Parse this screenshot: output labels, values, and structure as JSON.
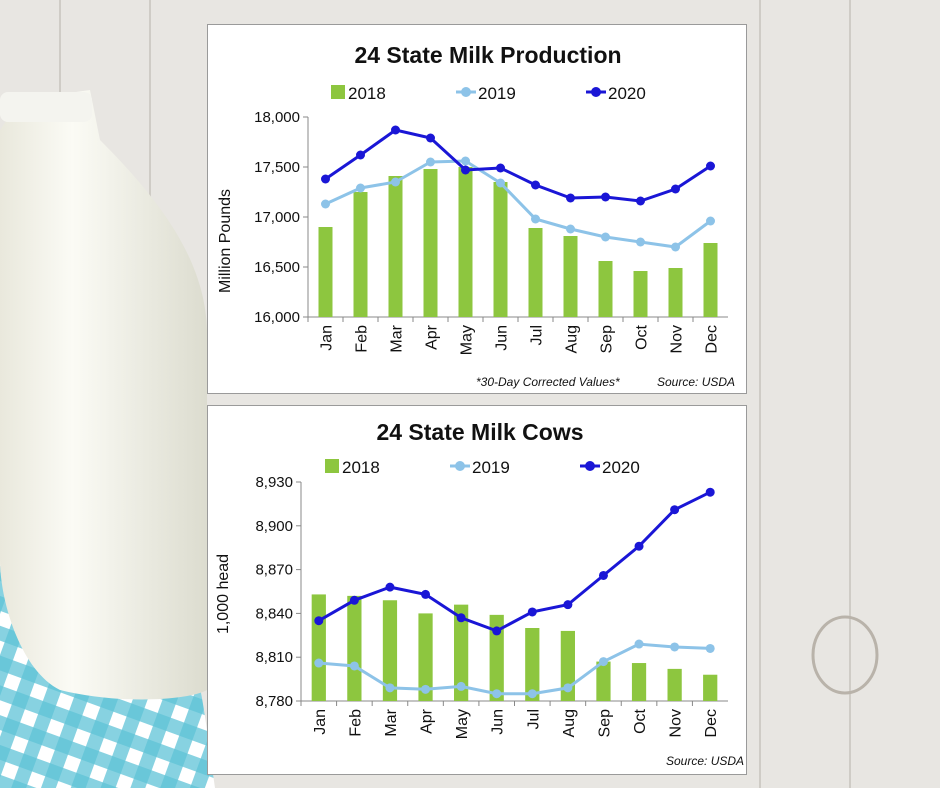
{
  "colors": {
    "c2018": "#8dc63f",
    "c2019": "#8dc3e8",
    "c2020": "#1a16d6"
  },
  "chart_data": [
    {
      "type": "bar",
      "title": "24 State Milk Production",
      "ylabel": "Million Pounds",
      "xlabel": "",
      "ylim": [
        16000,
        18000
      ],
      "yticks": [
        "16,000",
        "16,500",
        "17,000",
        "17,500",
        "18,000"
      ],
      "categories": [
        "Jan",
        "Feb",
        "Mar",
        "Apr",
        "May",
        "Jun",
        "Jul",
        "Aug",
        "Sep",
        "Oct",
        "Nov",
        "Dec"
      ],
      "series": [
        {
          "name": "2018",
          "kind": "bar",
          "values": [
            16900,
            17250,
            17410,
            17480,
            17500,
            17350,
            16890,
            16810,
            16560,
            16460,
            16490,
            16740
          ]
        },
        {
          "name": "2019",
          "kind": "line",
          "values": [
            17130,
            17290,
            17350,
            17550,
            17560,
            17340,
            16980,
            16880,
            16800,
            16750,
            16700,
            16960
          ]
        },
        {
          "name": "2020",
          "kind": "line",
          "values": [
            17380,
            17620,
            17870,
            17790,
            17470,
            17490,
            17320,
            17190,
            17200,
            17160,
            17280,
            17510
          ]
        }
      ],
      "notes": [
        "*30-Day Corrected Values*",
        "Source: USDA"
      ],
      "legend": "top",
      "grid": false
    },
    {
      "type": "bar",
      "title": "24 State Milk Cows",
      "ylabel": "1,000 head",
      "xlabel": "",
      "ylim": [
        8780,
        8930
      ],
      "yticks": [
        "8,780",
        "8,810",
        "8,840",
        "8,870",
        "8,900",
        "8,930"
      ],
      "categories": [
        "Jan",
        "Feb",
        "Mar",
        "Apr",
        "May",
        "Jun",
        "Jul",
        "Aug",
        "Sep",
        "Oct",
        "Nov",
        "Dec"
      ],
      "series": [
        {
          "name": "2018",
          "kind": "bar",
          "values": [
            8853,
            8852,
            8849,
            8840,
            8846,
            8839,
            8830,
            8828,
            8807,
            8806,
            8802,
            8798
          ]
        },
        {
          "name": "2019",
          "kind": "line",
          "values": [
            8806,
            8804,
            8789,
            8788,
            8790,
            8785,
            8785,
            8789,
            8807,
            8819,
            8817,
            8816
          ]
        },
        {
          "name": "2020",
          "kind": "line",
          "values": [
            8835,
            8849,
            8858,
            8853,
            8837,
            8828,
            8841,
            8846,
            8866,
            8886,
            8911,
            8923
          ]
        }
      ],
      "notes": [
        "Source: USDA"
      ],
      "legend": "top",
      "grid": false
    }
  ]
}
